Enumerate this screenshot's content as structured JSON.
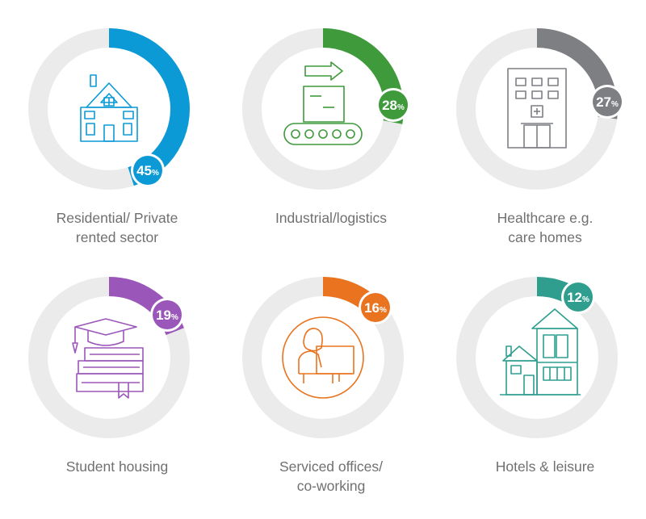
{
  "chart_data": {
    "type": "pie",
    "items": [
      {
        "label_lines": [
          "Residential/ Private",
          "rented sector"
        ],
        "value": 45,
        "pct": "45",
        "unit": "%",
        "color": "#0c9ad6",
        "icon": "house-icon"
      },
      {
        "label_lines": [
          "Industrial/logistics"
        ],
        "value": 28,
        "pct": "28",
        "unit": "%",
        "color": "#3e9a3a",
        "icon": "conveyor-box-icon"
      },
      {
        "label_lines": [
          "Healthcare e.g.",
          "care homes"
        ],
        "value": 27,
        "pct": "27",
        "unit": "%",
        "color": "#7d7f83",
        "icon": "hospital-building-icon"
      },
      {
        "label_lines": [
          "Student housing"
        ],
        "value": 19,
        "pct": "19",
        "unit": "%",
        "color": "#9b56b9",
        "icon": "books-graduation-cap-icon"
      },
      {
        "label_lines": [
          "Serviced offices/",
          "co-working"
        ],
        "value": 16,
        "pct": "16",
        "unit": "%",
        "color": "#e9731f",
        "icon": "person-at-desk-icon"
      },
      {
        "label_lines": [
          "Hotels & leisure"
        ],
        "value": 12,
        "pct": "12",
        "unit": "%",
        "color": "#2f9e8f",
        "icon": "modern-house-icon"
      }
    ],
    "track_color": "#ebebeb",
    "label_color": "#707070"
  }
}
